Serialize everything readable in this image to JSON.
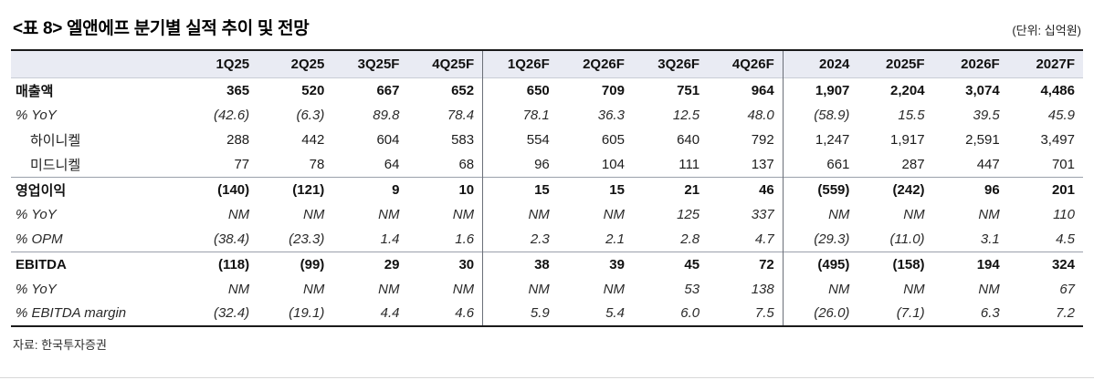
{
  "header": {
    "title": "<표 8> 엘앤에프 분기별 실적 추이 및 전망",
    "unit_note": "(단위: 십억원)"
  },
  "table": {
    "columns": [
      "1Q25",
      "2Q25",
      "3Q25F",
      "4Q25F",
      "1Q26F",
      "2Q26F",
      "3Q26F",
      "4Q26F",
      "2024",
      "2025F",
      "2026F",
      "2027F"
    ],
    "group_divider_after_columns": [
      "4Q25F",
      "4Q26F"
    ],
    "rows": [
      {
        "label": "매출액",
        "style": "bold",
        "separator_below": false,
        "values": [
          "365",
          "520",
          "667",
          "652",
          "650",
          "709",
          "751",
          "964",
          "1,907",
          "2,204",
          "3,074",
          "4,486"
        ]
      },
      {
        "label": "% YoY",
        "style": "italic",
        "separator_below": false,
        "values": [
          "(42.6)",
          "(6.3)",
          "89.8",
          "78.4",
          "78.1",
          "36.3",
          "12.5",
          "48.0",
          "(58.9)",
          "15.5",
          "39.5",
          "45.9"
        ]
      },
      {
        "label": "하이니켈",
        "style": "indent",
        "separator_below": false,
        "values": [
          "288",
          "442",
          "604",
          "583",
          "554",
          "605",
          "640",
          "792",
          "1,247",
          "1,917",
          "2,591",
          "3,497"
        ]
      },
      {
        "label": "미드니켈",
        "style": "indent",
        "separator_below": true,
        "values": [
          "77",
          "78",
          "64",
          "68",
          "96",
          "104",
          "111",
          "137",
          "661",
          "287",
          "447",
          "701"
        ]
      },
      {
        "label": "영업이익",
        "style": "bold",
        "separator_below": false,
        "values": [
          "(140)",
          "(121)",
          "9",
          "10",
          "15",
          "15",
          "21",
          "46",
          "(559)",
          "(242)",
          "96",
          "201"
        ]
      },
      {
        "label": "% YoY",
        "style": "italic",
        "separator_below": false,
        "values": [
          "NM",
          "NM",
          "NM",
          "NM",
          "NM",
          "NM",
          "125",
          "337",
          "NM",
          "NM",
          "NM",
          "110"
        ]
      },
      {
        "label": "% OPM",
        "style": "italic",
        "separator_below": true,
        "values": [
          "(38.4)",
          "(23.3)",
          "1.4",
          "1.6",
          "2.3",
          "2.1",
          "2.8",
          "4.7",
          "(29.3)",
          "(11.0)",
          "3.1",
          "4.5"
        ]
      },
      {
        "label": "EBITDA",
        "style": "bold",
        "separator_below": false,
        "values": [
          "(118)",
          "(99)",
          "29",
          "30",
          "38",
          "39",
          "45",
          "72",
          "(495)",
          "(158)",
          "194",
          "324"
        ]
      },
      {
        "label": "% YoY",
        "style": "italic",
        "separator_below": false,
        "values": [
          "NM",
          "NM",
          "NM",
          "NM",
          "NM",
          "NM",
          "53",
          "138",
          "NM",
          "NM",
          "NM",
          "67"
        ]
      },
      {
        "label": "% EBITDA margin",
        "style": "italic",
        "separator_below": false,
        "values": [
          "(32.4)",
          "(19.1)",
          "4.4",
          "4.6",
          "5.9",
          "5.4",
          "6.0",
          "7.5",
          "(26.0)",
          "(7.1)",
          "6.3",
          "7.2"
        ]
      }
    ]
  },
  "footer": {
    "source": "자료: 한국투자증권"
  },
  "colors": {
    "header_bg": "#e9ebf3",
    "border_dark": "#1a1a1a",
    "separator_gray": "#9aa0ab",
    "group_divider": "#6b6f78",
    "bottom_rule": "#d8d8d8"
  }
}
